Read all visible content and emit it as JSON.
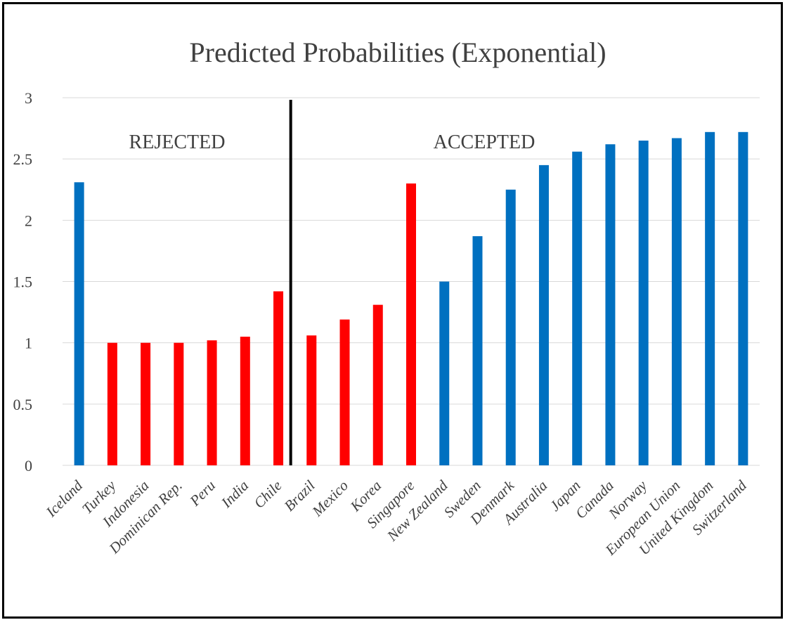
{
  "chart_data": {
    "type": "bar",
    "title": "Predicted Probabilities (Exponential)",
    "xlabel": "",
    "ylabel": "",
    "ylim": [
      0,
      3
    ],
    "yticks": [
      0,
      0.5,
      1,
      1.5,
      2,
      2.5,
      3
    ],
    "ytick_labels": [
      "0",
      "0.5",
      "1",
      "1.5",
      "2",
      "2.5",
      "3"
    ],
    "grid": true,
    "legend": "none",
    "categories": [
      "Iceland",
      "Turkey",
      "Indonesia",
      "Dominican Rep.",
      "Peru",
      "India",
      "Chile",
      "Brazil",
      "Mexico",
      "Korea",
      "Singapore",
      "New Zealand",
      "Sweden",
      "Denmark",
      "Australia",
      "Japan",
      "Canada",
      "Norway",
      "European Union",
      "United Kingdom",
      "Switzerland"
    ],
    "values": [
      2.31,
      1.0,
      1.0,
      1.0,
      1.02,
      1.05,
      1.42,
      1.06,
      1.19,
      1.31,
      2.3,
      1.5,
      1.87,
      2.25,
      2.45,
      2.56,
      2.62,
      2.65,
      2.67,
      2.72,
      2.72
    ],
    "bar_colors": [
      "#0070c0",
      "#ff0000",
      "#ff0000",
      "#ff0000",
      "#ff0000",
      "#ff0000",
      "#ff0000",
      "#ff0000",
      "#ff0000",
      "#ff0000",
      "#ff0000",
      "#0070c0",
      "#0070c0",
      "#0070c0",
      "#0070c0",
      "#0070c0",
      "#0070c0",
      "#0070c0",
      "#0070c0",
      "#0070c0",
      "#0070c0"
    ],
    "annotations": {
      "rejected_label": "REJECTED",
      "accepted_label": "ACCEPTED",
      "divider_after_category": "Chile"
    }
  },
  "colors": {
    "accepted_bar": "#0070c0",
    "rejected_bar": "#ff0000",
    "gridline": "#d9d9d9",
    "divider": "#000000"
  }
}
